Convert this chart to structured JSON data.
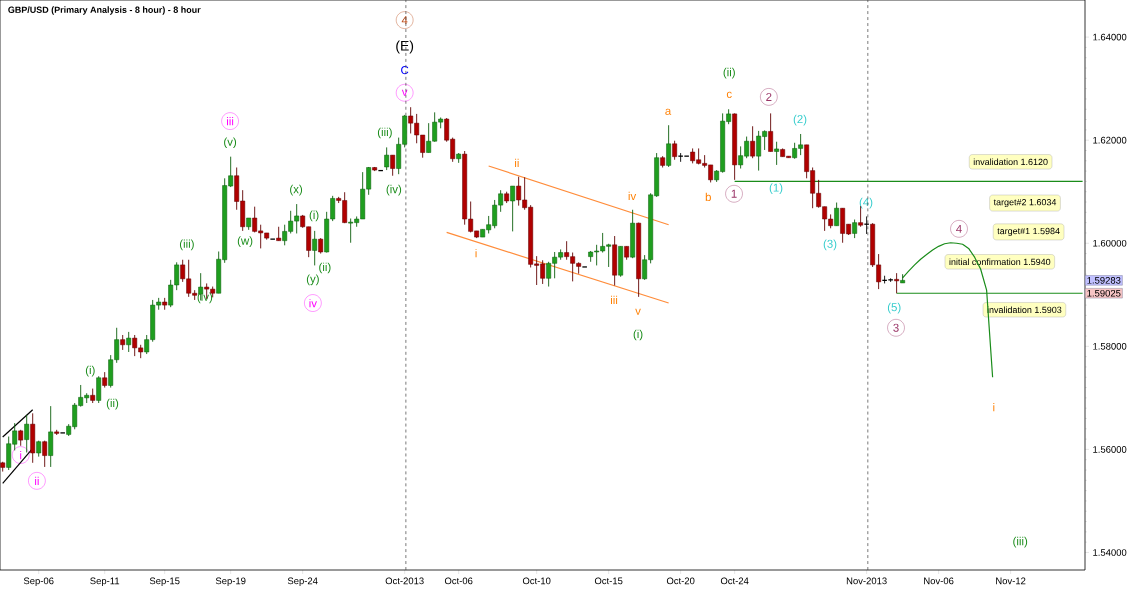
{
  "chart_data": {
    "type": "candlestick",
    "title": "GBP/USD (Primary Analysis - 8 hour) - 8 hour",
    "categories": [
      null,
      null,
      null,
      null,
      null,
      null,
      "Sep-06",
      null,
      null,
      null,
      null,
      null,
      null,
      null,
      null,
      null,
      null,
      "Sep-11",
      null,
      null,
      null,
      null,
      null,
      null,
      null,
      null,
      null,
      "Sep-15",
      null,
      null,
      null,
      null,
      null,
      null,
      null,
      null,
      null,
      null,
      "Sep-19",
      null,
      null,
      null,
      null,
      null,
      null,
      null,
      null,
      null,
      null,
      null,
      "Sep-24",
      null,
      null,
      null,
      null,
      null,
      null,
      null,
      null,
      null,
      null,
      null,
      null,
      null,
      null,
      null,
      null,
      "Oct-2013",
      null,
      null,
      null,
      null,
      null,
      null,
      null,
      null,
      "Oct-06",
      null,
      null,
      null,
      null,
      null,
      null,
      null,
      null,
      null,
      null,
      null,
      null,
      "Oct-10",
      null,
      null,
      null,
      null,
      null,
      null,
      null,
      null,
      null,
      null,
      null,
      "Oct-15",
      null,
      null,
      null,
      null,
      null,
      null,
      null,
      null,
      null,
      null,
      null,
      "Oct-20",
      null,
      null,
      null,
      null,
      null,
      null,
      null,
      null,
      "Oct-24",
      null,
      null,
      null,
      null,
      null,
      null,
      null,
      null,
      null,
      null,
      null,
      null,
      null,
      null,
      null,
      null,
      null,
      null,
      null,
      null,
      null,
      "Nov-2013",
      null,
      null,
      null,
      null,
      null,
      null,
      null,
      null,
      null,
      null,
      null,
      "Nov-06",
      null,
      null,
      null,
      null,
      null,
      null,
      null,
      null,
      null,
      null,
      null,
      "Nov-12",
      null,
      null,
      null,
      null,
      null,
      null,
      null,
      null,
      null,
      null,
      null,
      null
    ],
    "ohlc": [
      [
        1.5574,
        1.5576,
        1.5557,
        1.5565
      ],
      [
        1.5565,
        1.5625,
        1.556,
        1.5611
      ],
      [
        1.561,
        1.5651,
        1.5598,
        1.5636
      ],
      [
        1.5636,
        1.5638,
        1.5607,
        1.5618
      ],
      [
        1.5619,
        1.5667,
        1.5594,
        1.5649
      ],
      [
        1.5649,
        1.567,
        1.5574,
        1.5593
      ],
      [
        1.5593,
        1.5617,
        1.5586,
        1.5615
      ],
      [
        1.5615,
        1.5617,
        1.5566,
        1.5588
      ],
      [
        1.5588,
        1.5684,
        1.5566,
        1.5634
      ],
      [
        1.5634,
        1.5638,
        1.5628,
        1.5631
      ],
      [
        1.5632,
        1.5632,
        1.5632,
        1.5632
      ],
      [
        1.5629,
        1.5649,
        1.5626,
        1.5645
      ],
      [
        1.5644,
        1.569,
        1.5639,
        1.5686
      ],
      [
        1.5685,
        1.5725,
        1.5683,
        1.5701
      ],
      [
        1.57,
        1.5709,
        1.569,
        1.5705
      ],
      [
        1.5705,
        1.5718,
        1.569,
        1.5695
      ],
      [
        1.5695,
        1.5742,
        1.569,
        1.5739
      ],
      [
        1.5739,
        1.575,
        1.572,
        1.5724
      ],
      [
        1.5724,
        1.5783,
        1.572,
        1.5774
      ],
      [
        1.5774,
        1.5836,
        1.5768,
        1.5813
      ],
      [
        1.5813,
        1.5822,
        1.5793,
        1.5803
      ],
      [
        1.5803,
        1.5828,
        1.5789,
        1.5816
      ],
      [
        1.5816,
        1.5822,
        1.5781,
        1.5797
      ],
      [
        1.5797,
        1.5803,
        1.5777,
        1.5789
      ],
      [
        1.5789,
        1.5822,
        1.5785,
        1.5813
      ],
      [
        1.5813,
        1.589,
        1.5809,
        1.588
      ],
      [
        1.588,
        1.5894,
        1.5871,
        1.5886
      ],
      [
        1.5886,
        1.5894,
        1.5871,
        1.588
      ],
      [
        1.588,
        1.5929,
        1.5876,
        1.5919
      ],
      [
        1.5919,
        1.5963,
        1.5909,
        1.5958
      ],
      [
        1.5958,
        1.5968,
        1.5925,
        1.5931
      ],
      [
        1.5931,
        1.5968,
        1.5896,
        1.5903
      ],
      [
        1.5903,
        1.5909,
        1.589,
        1.5899
      ],
      [
        1.5901,
        1.5942,
        1.5889,
        1.5915
      ],
      [
        1.5915,
        1.5922,
        1.5892,
        1.5911
      ],
      [
        1.5911,
        1.5916,
        1.5895,
        1.5903
      ],
      [
        1.5903,
        1.5984,
        1.5903,
        1.5969
      ],
      [
        1.5968,
        1.6126,
        1.5962,
        1.6112
      ],
      [
        1.6111,
        1.6168,
        1.6109,
        1.6131
      ],
      [
        1.6131,
        1.6147,
        1.6065,
        1.6081
      ],
      [
        1.6082,
        1.6103,
        1.6024,
        1.6032
      ],
      [
        1.6032,
        1.6049,
        1.6026,
        1.6049
      ],
      [
        1.6049,
        1.6071,
        1.6021,
        1.6023
      ],
      [
        1.6024,
        1.6036,
        1.599,
        1.602
      ],
      [
        1.602,
        1.602,
        1.6007,
        1.601
      ],
      [
        1.6008,
        1.6008,
        1.6008,
        1.6008
      ],
      [
        1.601,
        1.6032,
        1.6005,
        1.6005
      ],
      [
        1.6005,
        1.6036,
        1.5996,
        1.6023
      ],
      [
        1.6023,
        1.6063,
        1.6019,
        1.6043
      ],
      [
        1.6043,
        1.6076,
        1.6019,
        1.6053
      ],
      [
        1.6053,
        1.6055,
        1.603,
        1.6032
      ],
      [
        1.6032,
        1.6032,
        1.5973,
        1.5986
      ],
      [
        1.5986,
        1.6024,
        1.5957,
        1.6008
      ],
      [
        1.6008,
        1.601,
        1.598,
        1.5983
      ],
      [
        1.5983,
        1.6061,
        1.5982,
        1.6047
      ],
      [
        1.6047,
        1.6092,
        1.6043,
        1.6087
      ],
      [
        1.6087,
        1.609,
        1.6078,
        1.6083
      ],
      [
        1.6083,
        1.6099,
        1.6039,
        1.604
      ],
      [
        1.6039,
        1.6048,
        1.6001,
        1.6041
      ],
      [
        1.604,
        1.6052,
        1.6032,
        1.6047
      ],
      [
        1.6047,
        1.6138,
        1.6047,
        1.6105
      ],
      [
        1.6105,
        1.6148,
        1.6094,
        1.6147
      ],
      [
        1.6147,
        1.6148,
        1.614,
        1.6142
      ],
      [
        1.6141,
        1.6141,
        1.6141,
        1.6141
      ],
      [
        1.6148,
        1.6186,
        1.6142,
        1.6171
      ],
      [
        1.6171,
        1.6171,
        1.6131,
        1.6145
      ],
      [
        1.6145,
        1.6205,
        1.6134,
        1.6192
      ],
      [
        1.6192,
        1.6249,
        1.6186,
        1.6247
      ],
      [
        1.6247,
        1.6264,
        1.6213,
        1.6233
      ],
      [
        1.6233,
        1.6251,
        1.6194,
        1.621
      ],
      [
        1.621,
        1.621,
        1.6166,
        1.6176
      ],
      [
        1.6176,
        1.6233,
        1.6176,
        1.6198
      ],
      [
        1.6198,
        1.6254,
        1.6197,
        1.6235
      ],
      [
        1.6235,
        1.6244,
        1.6223,
        1.6241
      ],
      [
        1.6241,
        1.6243,
        1.6197,
        1.62
      ],
      [
        1.6202,
        1.6205,
        1.6158,
        1.6164
      ],
      [
        1.6164,
        1.6175,
        1.6156,
        1.6173
      ],
      [
        1.6173,
        1.6179,
        1.6036,
        1.6047
      ],
      [
        1.6047,
        1.6081,
        1.6021,
        1.6023
      ],
      [
        1.6024,
        1.6024,
        1.601,
        1.6012
      ],
      [
        1.6012,
        1.6027,
        1.6012,
        1.6027
      ],
      [
        1.6026,
        1.6053,
        1.6019,
        1.6036
      ],
      [
        1.6034,
        1.6084,
        1.6029,
        1.6074
      ],
      [
        1.6074,
        1.6103,
        1.6061,
        1.6096
      ],
      [
        1.6096,
        1.61,
        1.6078,
        1.6082
      ],
      [
        1.6082,
        1.6111,
        1.6023,
        1.6111
      ],
      [
        1.6111,
        1.6129,
        1.6073,
        1.6084
      ],
      [
        1.6084,
        1.6128,
        1.6065,
        1.6069
      ],
      [
        1.607,
        1.6074,
        1.5953,
        1.5959
      ],
      [
        1.596,
        1.5975,
        1.5919,
        1.5957
      ],
      [
        1.596,
        1.5967,
        1.5921,
        1.5932
      ],
      [
        1.5932,
        1.5964,
        1.5916,
        1.5961
      ],
      [
        1.5961,
        1.5983,
        1.5932,
        1.5973
      ],
      [
        1.5973,
        1.5988,
        1.5968,
        1.5982
      ],
      [
        1.5982,
        1.6004,
        1.5968,
        1.5974
      ],
      [
        1.5974,
        1.5982,
        1.5926,
        1.5961
      ],
      [
        1.5961,
        1.5963,
        1.5941,
        1.5955
      ],
      [
        1.5954,
        1.5954,
        1.5954,
        1.5954
      ],
      [
        1.5974,
        1.5985,
        1.5964,
        1.5983
      ],
      [
        1.5983,
        1.5997,
        1.5957,
        1.5985
      ],
      [
        1.5985,
        1.602,
        1.5982,
        1.5994
      ],
      [
        1.5994,
        1.5999,
        1.5954,
        1.5997
      ],
      [
        1.5997,
        1.6014,
        1.5918,
        1.5938
      ],
      [
        1.5938,
        1.5994,
        1.5935,
        1.5994
      ],
      [
        1.5994,
        1.5994,
        1.5968,
        1.5973
      ],
      [
        1.5973,
        1.6065,
        1.5971,
        1.6039
      ],
      [
        1.6039,
        1.604,
        1.5896,
        1.5931
      ],
      [
        1.5931,
        1.5977,
        1.5929,
        1.5968
      ],
      [
        1.5968,
        1.6097,
        1.5961,
        1.6094
      ],
      [
        1.6092,
        1.6175,
        1.609,
        1.6166
      ],
      [
        1.6166,
        1.6169,
        1.6147,
        1.6151
      ],
      [
        1.6151,
        1.6229,
        1.6148,
        1.6193
      ],
      [
        1.6193,
        1.6199,
        1.6162,
        1.6168
      ],
      [
        1.6169,
        1.6175,
        1.6158,
        1.6169
      ],
      [
        1.6169,
        1.6169,
        1.6169,
        1.6169
      ],
      [
        1.6177,
        1.6184,
        1.6155,
        1.616
      ],
      [
        1.6162,
        1.6184,
        1.6153,
        1.6155
      ],
      [
        1.6155,
        1.6171,
        1.6147,
        1.6151
      ],
      [
        1.6152,
        1.6152,
        1.6118,
        1.6123
      ],
      [
        1.6123,
        1.6142,
        1.6119,
        1.614
      ],
      [
        1.6139,
        1.6252,
        1.6137,
        1.6237
      ],
      [
        1.6236,
        1.626,
        1.6231,
        1.6251
      ],
      [
        1.6251,
        1.6252,
        1.6123,
        1.6152
      ],
      [
        1.6152,
        1.6188,
        1.6145,
        1.617
      ],
      [
        1.6169,
        1.6207,
        1.6165,
        1.6198
      ],
      [
        1.6198,
        1.6227,
        1.6165,
        1.6169
      ],
      [
        1.6169,
        1.6218,
        1.6141,
        1.6208
      ],
      [
        1.6207,
        1.6219,
        1.6181,
        1.6217
      ],
      [
        1.6217,
        1.6252,
        1.6178,
        1.6178
      ],
      [
        1.6178,
        1.6197,
        1.6152,
        1.6183
      ],
      [
        1.6182,
        1.6184,
        1.6168,
        1.6168
      ],
      [
        1.6169,
        1.6169,
        1.6166,
        1.6166
      ],
      [
        1.6166,
        1.6195,
        1.6164,
        1.6184
      ],
      [
        1.6184,
        1.6212,
        1.6171,
        1.6191
      ],
      [
        1.6191,
        1.6191,
        1.6126,
        1.6139
      ],
      [
        1.6141,
        1.6147,
        1.6068,
        1.6097
      ],
      [
        1.6097,
        1.6123,
        1.6069,
        1.6071
      ],
      [
        1.6071,
        1.6071,
        1.6024,
        1.6047
      ],
      [
        1.6047,
        1.6056,
        1.6029,
        1.6034
      ],
      [
        1.6034,
        1.6079,
        1.6034,
        1.6068
      ],
      [
        1.6068,
        1.6068,
        1.6001,
        1.6019
      ],
      [
        1.6037,
        1.6037,
        1.6016,
        1.6018
      ],
      [
        1.6019,
        1.6046,
        1.601,
        1.604
      ],
      [
        1.604,
        1.6072,
        1.6032,
        1.6035
      ],
      [
        1.6037,
        1.6052,
        1.6018,
        1.6037
      ],
      [
        1.6037,
        1.6039,
        1.5954,
        1.5958
      ],
      [
        1.5958,
        1.5979,
        1.5911,
        1.5925
      ],
      [
        1.5928,
        1.5937,
        1.5922,
        1.5928
      ],
      [
        1.5929,
        1.5932,
        1.5925,
        1.5929
      ],
      [
        1.593,
        1.5942,
        1.5903,
        1.5927
      ],
      [
        1.5923,
        1.594,
        1.5923,
        1.5928
      ],
      null,
      null,
      null,
      null,
      null,
      null,
      null,
      null,
      null,
      null,
      null,
      null,
      null,
      null,
      null,
      null,
      null,
      null,
      null,
      null,
      null,
      null,
      null,
      null,
      null,
      null,
      null,
      null,
      null,
      null
    ],
    "series": [
      {
        "type": "line",
        "color": "#000000",
        "values": [
          1.5624,
          null,
          null,
          null,
          null,
          1.5677,
          null,
          null,
          null,
          null,
          null,
          null,
          null,
          null,
          null,
          null,
          null,
          null,
          null,
          null,
          null,
          null,
          null,
          null,
          null,
          null,
          null,
          null,
          null,
          null,
          null,
          null,
          null,
          null,
          null,
          null,
          null,
          null,
          null,
          null,
          null,
          null,
          null,
          null,
          null,
          null,
          null,
          null,
          null,
          null,
          null,
          null,
          null,
          null,
          null,
          null,
          null,
          null,
          null,
          null,
          null,
          null,
          null,
          null,
          null,
          null,
          null,
          null,
          null,
          null,
          null,
          null,
          null,
          null,
          null,
          null,
          null,
          null,
          null,
          null,
          null,
          null,
          null,
          null,
          null,
          null,
          null,
          null,
          null,
          null,
          null,
          null,
          null,
          null,
          null,
          null,
          null,
          null,
          null,
          null,
          null,
          null,
          null,
          null,
          null,
          null,
          null,
          null,
          null,
          null,
          null,
          null,
          null,
          null,
          null,
          null,
          null,
          null,
          null,
          null,
          null,
          null,
          null,
          null,
          null,
          null,
          null,
          null,
          null,
          null,
          null,
          null,
          null,
          null,
          null,
          null,
          null,
          null,
          null,
          null,
          null,
          null,
          null,
          null,
          null,
          null,
          null,
          null,
          null,
          null,
          null,
          null,
          null,
          null,
          null,
          null,
          null,
          null,
          null,
          null,
          null,
          null,
          null,
          null,
          null,
          null,
          null,
          null,
          null,
          null,
          null,
          null,
          null,
          null,
          null,
          null,
          null,
          null,
          null,
          null,
          null
        ]
      },
      {
        "type": "line",
        "color": "#000000",
        "values": [
          1.5534,
          null,
          null,
          null,
          null,
          1.5602,
          null,
          null,
          null,
          null,
          null,
          null,
          null,
          null,
          null,
          null,
          null,
          null,
          null,
          null,
          null,
          null,
          null,
          null,
          null,
          null,
          null,
          null,
          null,
          null,
          null,
          null,
          null,
          null,
          null,
          null,
          null,
          null,
          null,
          null,
          null,
          null,
          null,
          null,
          null,
          null,
          null,
          null,
          null,
          null,
          null,
          null,
          null,
          null,
          null,
          null,
          null,
          null,
          null,
          null,
          null,
          null,
          null,
          null,
          null,
          null,
          null,
          null,
          null,
          null,
          null,
          null,
          null,
          null,
          null,
          null,
          null,
          null,
          null,
          null,
          null,
          null,
          null,
          null,
          null,
          null,
          null,
          null,
          null,
          null,
          null,
          null,
          null,
          null,
          null,
          null,
          null,
          null,
          null,
          null,
          null,
          null,
          null,
          null,
          null,
          null,
          null,
          null,
          null,
          null,
          null,
          null,
          null,
          null,
          null,
          null,
          null,
          null,
          null,
          null,
          null,
          null,
          null,
          null,
          null,
          null,
          null,
          null,
          null,
          null,
          null,
          null,
          null,
          null,
          null,
          null,
          null,
          null,
          null,
          null,
          null,
          null,
          null,
          null,
          null,
          null,
          null,
          null,
          null,
          null,
          null,
          null,
          null,
          null,
          null,
          null,
          null,
          null,
          null,
          null,
          null,
          null,
          null,
          null,
          null,
          null,
          null,
          null,
          null,
          null,
          null,
          null,
          null,
          null,
          null,
          null,
          null,
          null,
          null,
          null,
          null
        ]
      },
      {
        "type": "line",
        "color": "#ff8c3a",
        "values": [
          null,
          null,
          null,
          null,
          null,
          null,
          null,
          null,
          null,
          null,
          null,
          null,
          null,
          null,
          null,
          null,
          null,
          null,
          null,
          null,
          null,
          null,
          null,
          null,
          null,
          null,
          null,
          null,
          null,
          null,
          null,
          null,
          null,
          null,
          null,
          null,
          null,
          null,
          null,
          null,
          null,
          null,
          null,
          null,
          null,
          null,
          null,
          null,
          null,
          null,
          null,
          null,
          null,
          null,
          null,
          null,
          null,
          null,
          null,
          null,
          null,
          null,
          null,
          null,
          null,
          null,
          null,
          null,
          null,
          null,
          null,
          null,
          null,
          null,
          null,
          null,
          null,
          null,
          null,
          null,
          null,
          1.615,
          null,
          null,
          null,
          null,
          null,
          null,
          null,
          null,
          null,
          null,
          null,
          null,
          null,
          null,
          null,
          null,
          null,
          null,
          null,
          null,
          null,
          null,
          null,
          null,
          null,
          null,
          null,
          null,
          null,
          1.6036,
          null,
          null,
          null,
          null,
          null,
          null,
          null,
          null,
          null,
          null,
          null,
          null,
          null,
          null,
          null,
          null,
          null,
          null,
          null,
          null,
          null,
          null,
          null,
          null,
          null,
          null,
          null,
          null,
          null,
          null,
          null,
          null,
          null,
          null,
          null,
          null,
          null,
          null,
          null,
          null,
          null,
          null,
          null,
          null,
          null,
          null,
          null,
          null,
          null,
          null,
          null,
          null,
          null,
          null,
          null,
          null,
          null,
          null,
          null,
          null,
          null,
          null,
          null,
          null,
          null,
          null,
          null,
          null,
          null
        ]
      },
      {
        "type": "line",
        "color": "#ff8c3a",
        "values": [
          null,
          null,
          null,
          null,
          null,
          null,
          null,
          null,
          null,
          null,
          null,
          null,
          null,
          null,
          null,
          null,
          null,
          null,
          null,
          null,
          null,
          null,
          null,
          null,
          null,
          null,
          null,
          null,
          null,
          null,
          null,
          null,
          null,
          null,
          null,
          null,
          null,
          null,
          null,
          null,
          null,
          null,
          null,
          null,
          null,
          null,
          null,
          null,
          null,
          null,
          null,
          null,
          null,
          null,
          null,
          null,
          null,
          null,
          null,
          null,
          null,
          null,
          null,
          null,
          null,
          null,
          null,
          null,
          null,
          null,
          null,
          null,
          null,
          null,
          1.6021,
          null,
          null,
          null,
          null,
          null,
          null,
          null,
          null,
          null,
          null,
          null,
          null,
          null,
          null,
          null,
          null,
          null,
          null,
          null,
          null,
          null,
          null,
          null,
          null,
          null,
          null,
          null,
          null,
          null,
          null,
          null,
          null,
          null,
          null,
          null,
          null,
          1.5884,
          null,
          null,
          null,
          null,
          null,
          null,
          null,
          null,
          null,
          null,
          null,
          null,
          null,
          null,
          null,
          null,
          null,
          null,
          null,
          null,
          null,
          null,
          null,
          null,
          null,
          null,
          null,
          null,
          null,
          null,
          null,
          null,
          null,
          null,
          null,
          null,
          null,
          null,
          null,
          null,
          null,
          null,
          null,
          null,
          null,
          null,
          null,
          null,
          null,
          null,
          null,
          null,
          null,
          null,
          null,
          null,
          null,
          null,
          null,
          null,
          null,
          null,
          null,
          null,
          null,
          null,
          null,
          null,
          null
        ]
      },
      {
        "type": "line",
        "color": "#1a8c1a",
        "values": [
          null,
          null,
          null,
          null,
          null,
          null,
          null,
          null,
          null,
          null,
          null,
          null,
          null,
          null,
          null,
          null,
          null,
          null,
          null,
          null,
          null,
          null,
          null,
          null,
          null,
          null,
          null,
          null,
          null,
          null,
          null,
          null,
          null,
          null,
          null,
          null,
          null,
          null,
          null,
          null,
          null,
          null,
          null,
          null,
          null,
          null,
          null,
          null,
          null,
          null,
          null,
          null,
          null,
          null,
          null,
          null,
          null,
          null,
          null,
          null,
          null,
          null,
          null,
          null,
          null,
          null,
          null,
          null,
          null,
          null,
          null,
          null,
          null,
          null,
          null,
          null,
          null,
          null,
          null,
          null,
          null,
          null,
          null,
          null,
          null,
          null,
          null,
          null,
          null,
          null,
          null,
          null,
          null,
          null,
          null,
          null,
          null,
          null,
          null,
          null,
          null,
          null,
          null,
          null,
          null,
          null,
          null,
          null,
          null,
          null,
          null,
          null,
          null,
          null,
          null,
          null,
          null,
          null,
          null,
          null,
          null,
          null,
          1.612,
          null,
          null,
          null,
          null,
          null,
          null,
          null,
          null,
          null,
          null,
          null,
          null,
          null,
          null,
          null,
          null,
          null,
          null,
          null,
          null,
          null,
          null,
          null,
          null,
          null,
          null,
          null,
          null,
          null,
          null,
          null,
          null,
          null,
          null,
          null,
          null,
          null,
          null,
          null,
          null,
          null,
          null,
          null,
          null,
          null,
          null,
          null,
          null,
          null,
          null,
          null,
          null,
          null,
          null,
          null,
          null,
          null,
          1.612
        ]
      },
      {
        "type": "line",
        "color": "#1a8c1a",
        "values": [
          null,
          null,
          null,
          null,
          null,
          null,
          null,
          null,
          null,
          null,
          null,
          null,
          null,
          null,
          null,
          null,
          null,
          null,
          null,
          null,
          null,
          null,
          null,
          null,
          null,
          null,
          null,
          null,
          null,
          null,
          null,
          null,
          null,
          null,
          null,
          null,
          null,
          null,
          null,
          null,
          null,
          null,
          null,
          null,
          null,
          null,
          null,
          null,
          null,
          null,
          null,
          null,
          null,
          null,
          null,
          null,
          null,
          null,
          null,
          null,
          null,
          null,
          null,
          null,
          null,
          null,
          null,
          null,
          null,
          null,
          null,
          null,
          null,
          null,
          null,
          null,
          null,
          null,
          null,
          null,
          null,
          null,
          null,
          null,
          null,
          null,
          null,
          null,
          null,
          null,
          null,
          null,
          null,
          null,
          null,
          null,
          null,
          null,
          null,
          null,
          null,
          null,
          null,
          null,
          null,
          null,
          null,
          null,
          null,
          null,
          null,
          null,
          null,
          null,
          null,
          null,
          null,
          null,
          null,
          null,
          null,
          null,
          null,
          null,
          null,
          null,
          null,
          null,
          null,
          null,
          null,
          null,
          null,
          null,
          null,
          null,
          null,
          null,
          null,
          null,
          null,
          null,
          null,
          null,
          null,
          null,
          null,
          null,
          null,
          1.5903,
          null,
          null,
          null,
          null,
          null,
          null,
          null,
          null,
          null,
          null,
          null,
          null,
          null,
          null,
          null,
          null,
          null,
          null,
          null,
          null,
          null,
          null,
          null,
          null,
          null,
          null,
          null,
          null,
          null,
          null,
          1.5903
        ]
      },
      {
        "type": "line",
        "color": "#1a8c1a",
        "values": [
          null,
          null,
          null,
          null,
          null,
          null,
          null,
          null,
          null,
          null,
          null,
          null,
          null,
          null,
          null,
          null,
          null,
          null,
          null,
          null,
          null,
          null,
          null,
          null,
          null,
          null,
          null,
          null,
          null,
          null,
          null,
          null,
          null,
          null,
          null,
          null,
          null,
          null,
          null,
          null,
          null,
          null,
          null,
          null,
          null,
          null,
          null,
          null,
          null,
          null,
          null,
          null,
          null,
          null,
          null,
          null,
          null,
          null,
          null,
          null,
          null,
          null,
          null,
          null,
          null,
          null,
          null,
          null,
          null,
          null,
          null,
          null,
          null,
          null,
          null,
          null,
          null,
          null,
          null,
          null,
          null,
          null,
          null,
          null,
          null,
          null,
          null,
          null,
          null,
          null,
          null,
          null,
          null,
          null,
          null,
          null,
          null,
          null,
          null,
          null,
          null,
          null,
          null,
          null,
          null,
          null,
          null,
          null,
          null,
          null,
          null,
          null,
          null,
          null,
          null,
          null,
          null,
          null,
          null,
          null,
          null,
          null,
          null,
          null,
          null,
          null,
          null,
          null,
          null,
          null,
          null,
          null,
          null,
          null,
          null,
          null,
          null,
          null,
          null,
          null,
          null,
          null,
          null,
          null,
          null,
          null,
          null,
          null,
          null,
          null,
          1.5933,
          1.5946,
          1.5958,
          1.5969,
          1.5978,
          1.5987,
          1.5994,
          1.5999,
          1.6001,
          1.6,
          1.5998,
          1.599,
          1.5973,
          1.595,
          1.5909,
          1.574,
          null,
          null,
          null,
          null,
          null,
          null,
          null,
          null,
          null,
          null,
          null,
          null,
          null,
          null,
          null
        ]
      }
    ],
    "annotations": [
      "4",
      "(E)",
      "C",
      "v",
      "i",
      "ii",
      "(i)",
      "(ii)",
      "(iii)",
      "(iv)",
      "iii",
      "(v)",
      "(w)",
      "(x)",
      "(i)",
      "(ii)",
      "(y)",
      "iv",
      "(iii)",
      "(iv)",
      "i",
      "ii",
      "iii",
      "iv",
      "v",
      "(i)",
      "a",
      "b",
      "c",
      "(ii)",
      "1",
      "2",
      "(1)",
      "(2)",
      "(3)",
      "(4)",
      "(5)",
      "3",
      "4",
      "i",
      "(iii)",
      "invalidation 1.6120",
      "target#2  1.6034",
      "target#1 1.5984",
      "initial confirmation 1.5940",
      "invalidation 1.5903",
      "1.59283",
      "1.59025"
    ],
    "ylim": [
      1.5366,
      1.6472
    ],
    "yticks": [
      {
        "value": 1.54,
        "label": "1.54000"
      },
      {
        "value": 1.56,
        "label": "1.56000"
      },
      {
        "value": 1.58,
        "label": "1.58000"
      },
      {
        "value": 1.6,
        "label": "1.60000"
      },
      {
        "value": 1.62,
        "label": "1.62000"
      },
      {
        "value": 1.64,
        "label": "1.64000"
      }
    ]
  }
}
